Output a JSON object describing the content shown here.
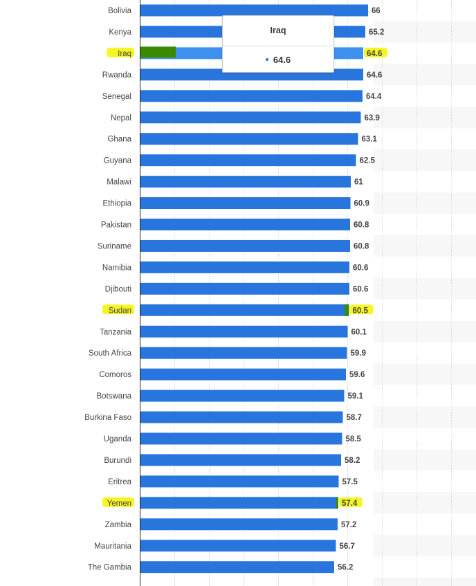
{
  "chart_data": {
    "type": "bar",
    "orientation": "horizontal",
    "categories": [
      "Bolivia",
      "Kenya",
      "Iraq",
      "Rwanda",
      "Senegal",
      "Nepal",
      "Ghana",
      "Guyana",
      "Malawi",
      "Ethiopia",
      "Pakistan",
      "Suriname",
      "Namibia",
      "Djibouti",
      "Sudan",
      "Tanzania",
      "South Africa",
      "Comoros",
      "Botswana",
      "Burkina Faso",
      "Uganda",
      "Burundi",
      "Eritrea",
      "Yemen",
      "Zambia",
      "Mauritania",
      "The Gambia"
    ],
    "values": [
      66,
      65.2,
      64.6,
      64.6,
      64.4,
      63.9,
      63.1,
      62.5,
      61,
      60.9,
      60.8,
      60.8,
      60.6,
      60.6,
      60.5,
      60.1,
      59.9,
      59.6,
      59.1,
      58.7,
      58.5,
      58.2,
      57.5,
      57.4,
      57.2,
      56.7,
      56.2
    ],
    "value_labels": [
      "66",
      "65.2",
      "64.6",
      "64.6",
      "64.4",
      "63.9",
      "63.1",
      "62.5",
      "61",
      "60.9",
      "60.8",
      "60.8",
      "60.6",
      "60.6",
      "60.5",
      "60.1",
      "59.9",
      "59.6",
      "59.1",
      "58.7",
      "58.5",
      "58.2",
      "57.5",
      "57.4",
      "57.2",
      "56.7",
      "56.2"
    ],
    "hovered_category": "Iraq",
    "highlighted_categories": [
      "Iraq",
      "Sudan",
      "Yemen"
    ],
    "grid": true,
    "colors": {
      "bar": "#2876dd",
      "bar_hover": "#3d8ff0",
      "highlight": "#f5f500",
      "marker": "#3a8a00",
      "axis": "#222222",
      "grid": "#cccccc",
      "band": "#f7f7f7"
    }
  },
  "tooltip": {
    "title": "Iraq",
    "value": "64.6"
  }
}
